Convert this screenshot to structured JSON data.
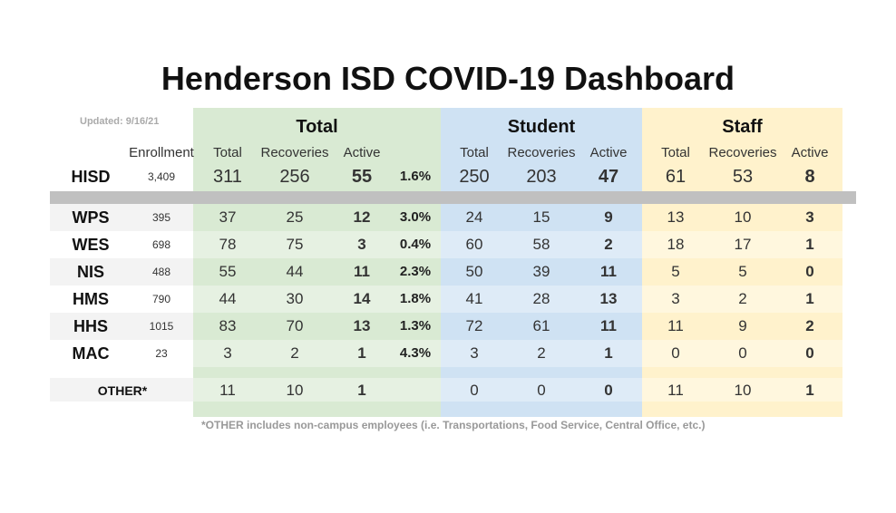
{
  "title": "Henderson ISD COVID-19 Dashboard",
  "updated": "Updated: 9/16/21",
  "groups": {
    "total": "Total",
    "student": "Student",
    "staff": "Staff"
  },
  "headers": {
    "enrollment": "Enrollment",
    "total": "Total",
    "recoveries": "Recoveries",
    "active": "Active"
  },
  "hisd": {
    "name": "HISD",
    "enrollment": "3,409",
    "total": [
      "311",
      "256",
      "55",
      "1.6%"
    ],
    "student": [
      "250",
      "203",
      "47"
    ],
    "staff": [
      "61",
      "53",
      "8"
    ]
  },
  "rows": [
    {
      "name": "WPS",
      "enrollment": "395",
      "total": [
        "37",
        "25",
        "12",
        "3.0%"
      ],
      "student": [
        "24",
        "15",
        "9"
      ],
      "staff": [
        "13",
        "10",
        "3"
      ]
    },
    {
      "name": "WES",
      "enrollment": "698",
      "total": [
        "78",
        "75",
        "3",
        "0.4%"
      ],
      "student": [
        "60",
        "58",
        "2"
      ],
      "staff": [
        "18",
        "17",
        "1"
      ]
    },
    {
      "name": "NIS",
      "enrollment": "488",
      "total": [
        "55",
        "44",
        "11",
        "2.3%"
      ],
      "student": [
        "50",
        "39",
        "11"
      ],
      "staff": [
        "5",
        "5",
        "0"
      ]
    },
    {
      "name": "HMS",
      "enrollment": "790",
      "total": [
        "44",
        "30",
        "14",
        "1.8%"
      ],
      "student": [
        "41",
        "28",
        "13"
      ],
      "staff": [
        "3",
        "2",
        "1"
      ]
    },
    {
      "name": "HHS",
      "enrollment": "1015",
      "total": [
        "83",
        "70",
        "13",
        "1.3%"
      ],
      "student": [
        "72",
        "61",
        "11"
      ],
      "staff": [
        "11",
        "9",
        "2"
      ]
    },
    {
      "name": "MAC",
      "enrollment": "23",
      "total": [
        "3",
        "2",
        "1",
        "4.3%"
      ],
      "student": [
        "3",
        "2",
        "1"
      ],
      "staff": [
        "0",
        "0",
        "0"
      ]
    }
  ],
  "other": {
    "name": "OTHER*",
    "total": [
      "11",
      "10",
      "1"
    ],
    "student": [
      "0",
      "0",
      "0"
    ],
    "staff": [
      "11",
      "10",
      "1"
    ]
  },
  "footnote": "*OTHER includes non-campus employees (i.e. Transportations, Food Service, Central Office, etc.)",
  "colors": {
    "total_bg": "#d9ead3",
    "student_bg": "#cfe2f3",
    "staff_bg": "#fff2cc",
    "separator": "#c0c0c0"
  }
}
